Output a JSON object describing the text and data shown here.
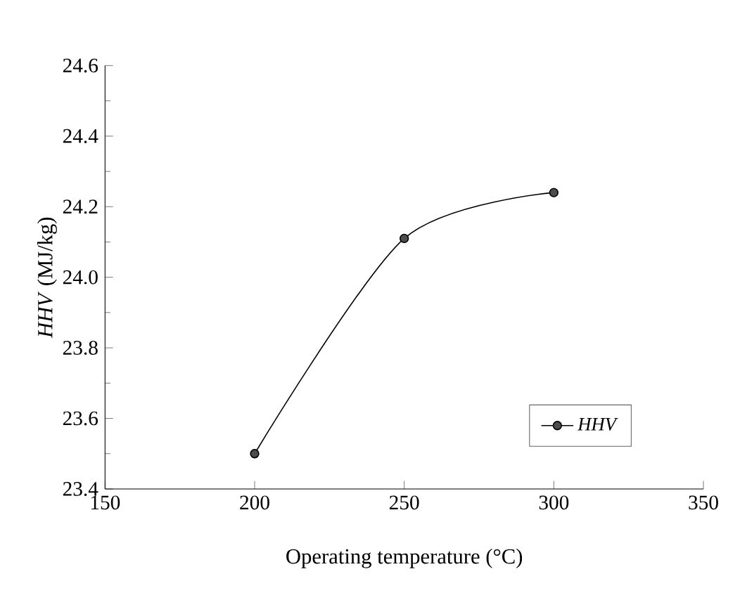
{
  "chart_data": {
    "type": "line",
    "xlabel": "Operating temperature (°C)",
    "ylabel": "*HHV* (MJ/kg)",
    "x": [
      200,
      250,
      300
    ],
    "series": [
      {
        "name": "*HHV*",
        "color": "#000000",
        "values": [
          23.5,
          24.11,
          24.24
        ]
      }
    ],
    "xlim": [
      150,
      350
    ],
    "xticks": [
      150,
      200,
      250,
      300,
      350
    ],
    "ylim": [
      23.4,
      24.6
    ],
    "yticks": [
      23.4,
      23.6,
      23.8,
      {
        "value": 24.0,
        "label": "24.0"
      },
      24.2,
      24.4,
      24.6
    ],
    "marker": "circle",
    "line_style": "solid",
    "legend": "bottom right",
    "grid": false
  }
}
